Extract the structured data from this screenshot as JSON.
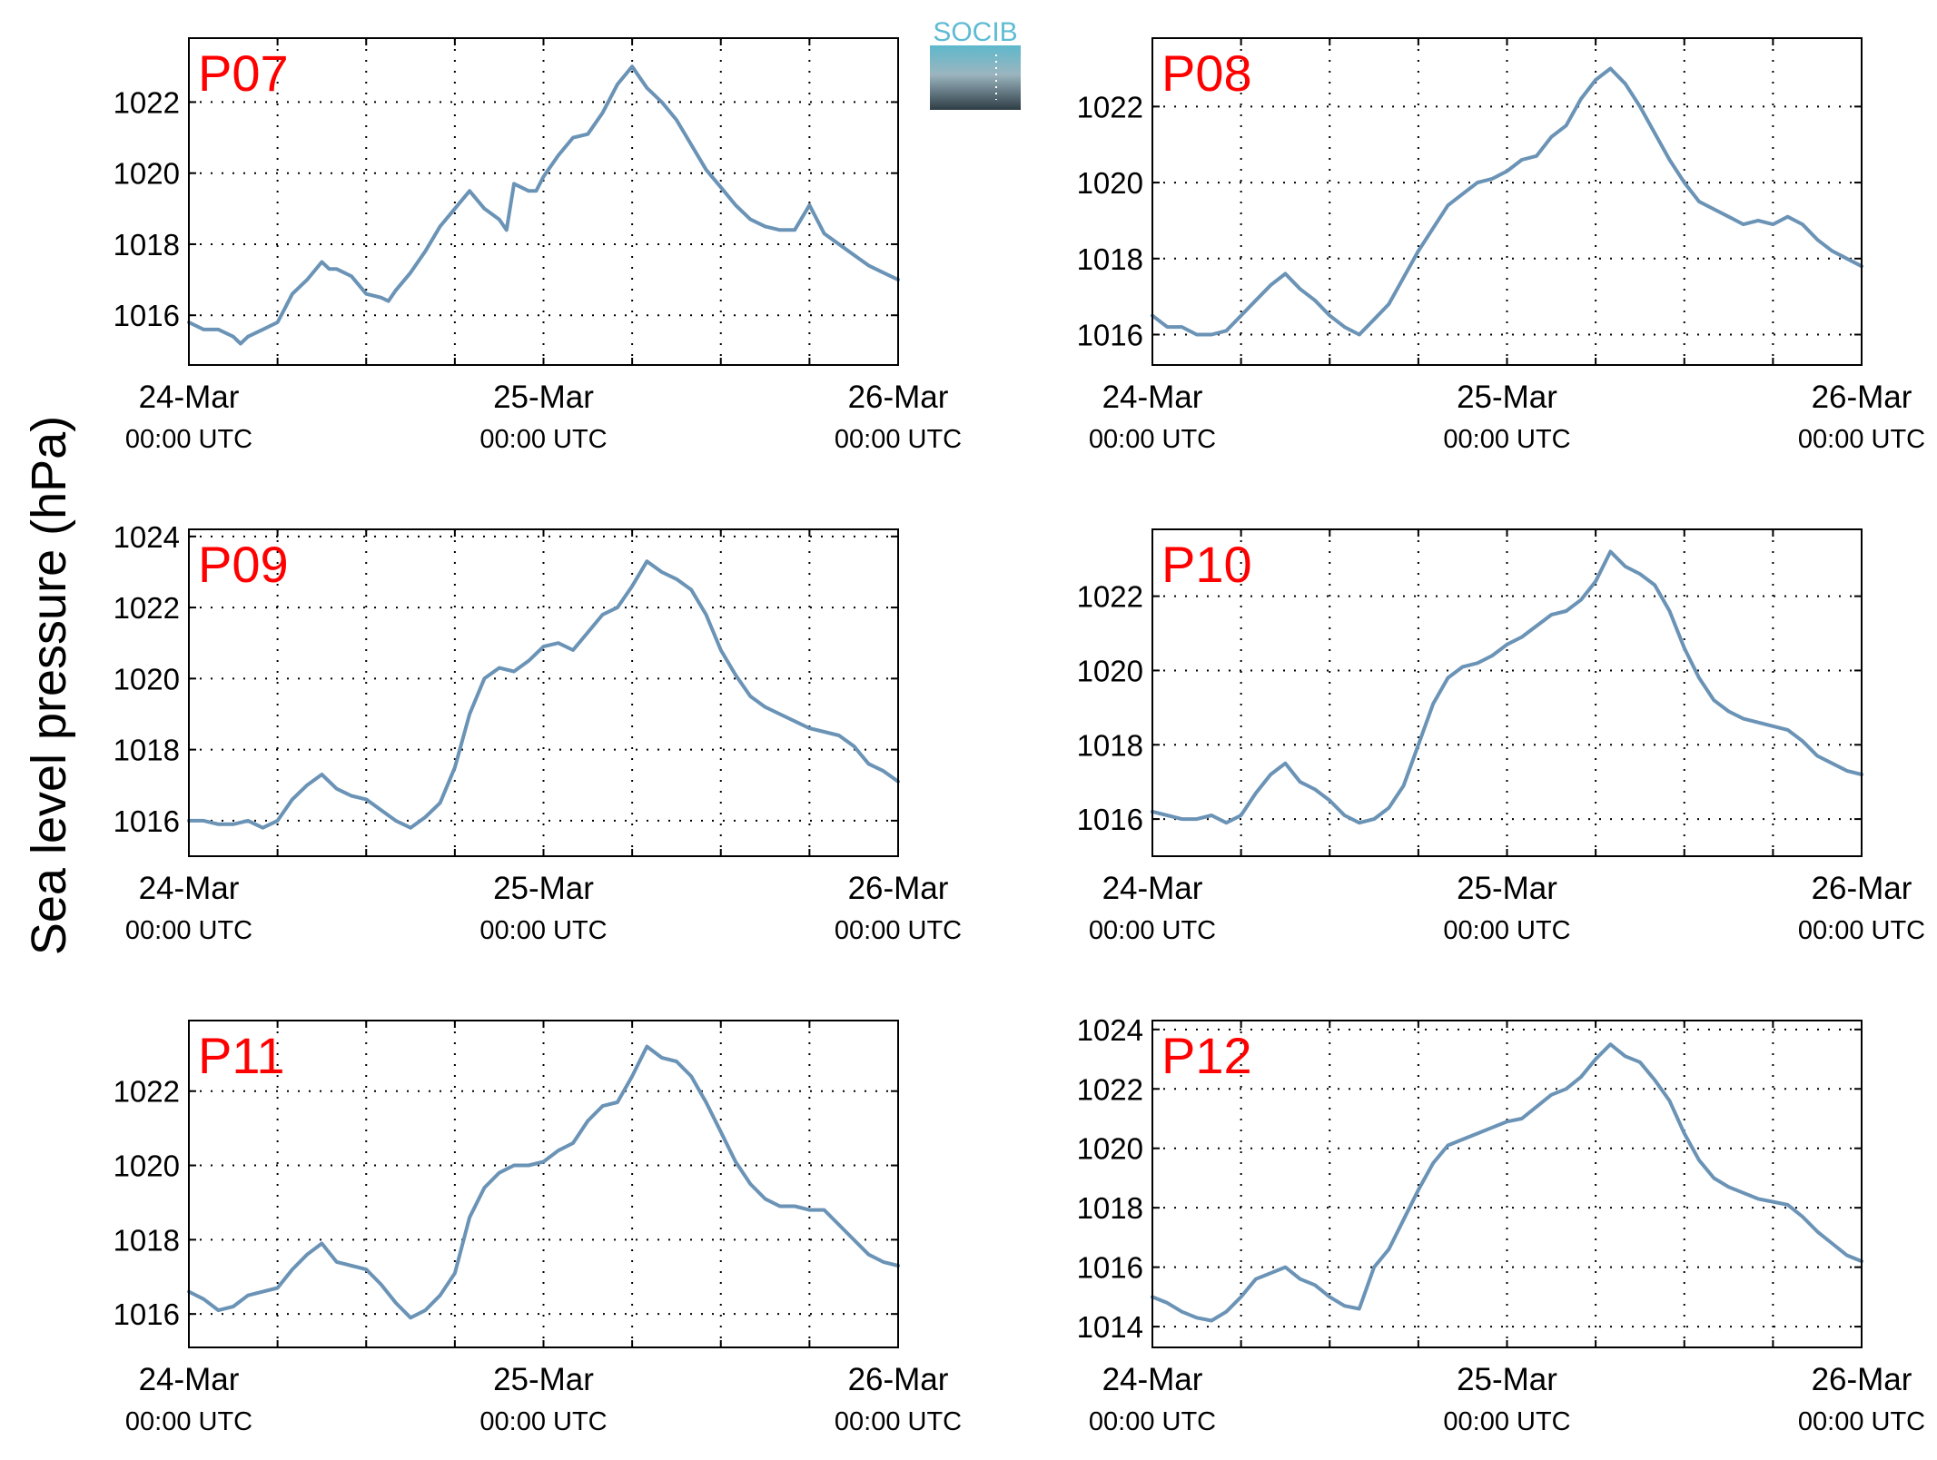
{
  "figure": {
    "ylabel": "Sea level pressure (hPa)",
    "logo_text": "SOCIB"
  },
  "style": {
    "line_color": "#6a93b6",
    "label_color": "#ff0000",
    "grid_color": "#000000",
    "logo_text_color": "#5fbcd3",
    "logo_top_color": "#5db8cc",
    "logo_bottom_color": "#2e3d46"
  },
  "x_tick_labels": [
    {
      "day": "24-Mar",
      "time": "00:00 UTC"
    },
    {
      "day": "25-Mar",
      "time": "00:00 UTC"
    },
    {
      "day": "26-Mar",
      "time": "00:00 UTC"
    }
  ],
  "chart_data": [
    {
      "type": "line",
      "title": "P07",
      "x_unit": "hours from 24-Mar 00:00 UTC",
      "xlim": [
        0,
        48
      ],
      "ylim": [
        1014.6,
        1023.8
      ],
      "yticks": [
        1016,
        1018,
        1020,
        1022
      ],
      "xticks": [
        0,
        6,
        12,
        18,
        24,
        30,
        36,
        42,
        48
      ],
      "grid": true,
      "x": [
        0,
        1,
        2,
        3,
        3.5,
        4,
        5,
        6,
        6.5,
        7,
        8,
        9,
        9.5,
        10,
        11,
        12,
        13,
        13.5,
        14,
        15,
        16,
        17,
        18,
        19,
        20,
        21,
        21.5,
        22,
        23,
        23.5,
        24,
        25,
        26,
        27,
        28,
        29,
        30,
        31,
        32,
        33,
        34,
        35,
        36,
        37,
        38,
        39,
        40,
        41,
        42,
        43,
        44,
        45,
        46,
        47,
        48
      ],
      "y": [
        1015.8,
        1015.6,
        1015.6,
        1015.4,
        1015.2,
        1015.4,
        1015.6,
        1015.8,
        1016.2,
        1016.6,
        1017.0,
        1017.5,
        1017.3,
        1017.3,
        1017.1,
        1016.6,
        1016.5,
        1016.4,
        1016.7,
        1017.2,
        1017.8,
        1018.5,
        1019.0,
        1019.5,
        1019.0,
        1018.7,
        1018.4,
        1019.7,
        1019.5,
        1019.5,
        1019.9,
        1020.5,
        1021.0,
        1021.1,
        1021.7,
        1022.5,
        1023.0,
        1022.4,
        1022.0,
        1021.5,
        1020.8,
        1020.1,
        1019.6,
        1019.1,
        1018.7,
        1018.5,
        1018.4,
        1018.4,
        1019.1,
        1018.3,
        1018.0,
        1017.7,
        1017.4,
        1017.2,
        1017.0
      ]
    },
    {
      "type": "line",
      "title": "P08",
      "x_unit": "hours from 24-Mar 00:00 UTC",
      "xlim": [
        0,
        48
      ],
      "ylim": [
        1015.2,
        1023.8
      ],
      "yticks": [
        1016,
        1018,
        1020,
        1022
      ],
      "xticks": [
        0,
        6,
        12,
        18,
        24,
        30,
        36,
        42,
        48
      ],
      "grid": true,
      "x": [
        0,
        1,
        2,
        3,
        4,
        5,
        6,
        7,
        8,
        9,
        10,
        11,
        12,
        13,
        14,
        15,
        16,
        17,
        18,
        19,
        20,
        21,
        22,
        23,
        24,
        25,
        26,
        27,
        28,
        29,
        30,
        31,
        32,
        33,
        34,
        35,
        36,
        37,
        38,
        39,
        40,
        41,
        42,
        43,
        44,
        45,
        46,
        47,
        48
      ],
      "y": [
        1016.5,
        1016.2,
        1016.2,
        1016.0,
        1016.0,
        1016.1,
        1016.5,
        1016.9,
        1017.3,
        1017.6,
        1017.2,
        1016.9,
        1016.5,
        1016.2,
        1016.0,
        1016.4,
        1016.8,
        1017.5,
        1018.2,
        1018.8,
        1019.4,
        1019.7,
        1020.0,
        1020.1,
        1020.3,
        1020.6,
        1020.7,
        1021.2,
        1021.5,
        1022.2,
        1022.7,
        1023.0,
        1022.6,
        1022.0,
        1021.3,
        1020.6,
        1020.0,
        1019.5,
        1019.3,
        1019.1,
        1018.9,
        1019.0,
        1018.9,
        1019.1,
        1018.9,
        1018.5,
        1018.2,
        1018.0,
        1017.8
      ]
    },
    {
      "type": "line",
      "title": "P09",
      "x_unit": "hours from 24-Mar 00:00 UTC",
      "xlim": [
        0,
        48
      ],
      "ylim": [
        1015.0,
        1024.2
      ],
      "yticks": [
        1016,
        1018,
        1020,
        1022,
        1024
      ],
      "xticks": [
        0,
        6,
        12,
        18,
        24,
        30,
        36,
        42,
        48
      ],
      "grid": true,
      "x": [
        0,
        1,
        2,
        3,
        4,
        5,
        6,
        7,
        8,
        9,
        10,
        11,
        12,
        13,
        14,
        15,
        16,
        17,
        18,
        19,
        20,
        21,
        22,
        23,
        24,
        25,
        26,
        27,
        28,
        29,
        30,
        31,
        32,
        33,
        34,
        35,
        36,
        37,
        38,
        39,
        40,
        41,
        42,
        43,
        44,
        45,
        46,
        47,
        48
      ],
      "y": [
        1016.0,
        1016.0,
        1015.9,
        1015.9,
        1016.0,
        1015.8,
        1016.0,
        1016.6,
        1017.0,
        1017.3,
        1016.9,
        1016.7,
        1016.6,
        1016.3,
        1016.0,
        1015.8,
        1016.1,
        1016.5,
        1017.5,
        1019.0,
        1020.0,
        1020.3,
        1020.2,
        1020.5,
        1020.9,
        1021.0,
        1020.8,
        1021.3,
        1021.8,
        1022.0,
        1022.6,
        1023.3,
        1023.0,
        1022.8,
        1022.5,
        1021.8,
        1020.8,
        1020.1,
        1019.5,
        1019.2,
        1019.0,
        1018.8,
        1018.6,
        1018.5,
        1018.4,
        1018.1,
        1017.6,
        1017.4,
        1017.1
      ]
    },
    {
      "type": "line",
      "title": "P10",
      "x_unit": "hours from 24-Mar 00:00 UTC",
      "xlim": [
        0,
        48
      ],
      "ylim": [
        1015.0,
        1023.8
      ],
      "yticks": [
        1016,
        1018,
        1020,
        1022
      ],
      "xticks": [
        0,
        6,
        12,
        18,
        24,
        30,
        36,
        42,
        48
      ],
      "grid": true,
      "x": [
        0,
        1,
        2,
        3,
        4,
        5,
        6,
        7,
        8,
        9,
        10,
        11,
        12,
        13,
        14,
        15,
        16,
        17,
        18,
        19,
        20,
        21,
        22,
        23,
        24,
        25,
        26,
        27,
        28,
        29,
        30,
        31,
        32,
        33,
        34,
        35,
        36,
        37,
        38,
        39,
        40,
        41,
        42,
        43,
        44,
        45,
        46,
        47,
        48
      ],
      "y": [
        1016.2,
        1016.1,
        1016.0,
        1016.0,
        1016.1,
        1015.9,
        1016.1,
        1016.7,
        1017.2,
        1017.5,
        1017.0,
        1016.8,
        1016.5,
        1016.1,
        1015.9,
        1016.0,
        1016.3,
        1016.9,
        1018.0,
        1019.1,
        1019.8,
        1020.1,
        1020.2,
        1020.4,
        1020.7,
        1020.9,
        1021.2,
        1021.5,
        1021.6,
        1021.9,
        1022.4,
        1023.2,
        1022.8,
        1022.6,
        1022.3,
        1021.6,
        1020.6,
        1019.8,
        1019.2,
        1018.9,
        1018.7,
        1018.6,
        1018.5,
        1018.4,
        1018.1,
        1017.7,
        1017.5,
        1017.3,
        1017.2
      ]
    },
    {
      "type": "line",
      "title": "P11",
      "x_unit": "hours from 24-Mar 00:00 UTC",
      "xlim": [
        0,
        48
      ],
      "ylim": [
        1015.1,
        1023.9
      ],
      "yticks": [
        1016,
        1018,
        1020,
        1022
      ],
      "xticks": [
        0,
        6,
        12,
        18,
        24,
        30,
        36,
        42,
        48
      ],
      "grid": true,
      "x": [
        0,
        1,
        2,
        3,
        4,
        5,
        6,
        7,
        8,
        9,
        10,
        11,
        12,
        13,
        14,
        15,
        16,
        17,
        18,
        19,
        20,
        21,
        22,
        23,
        24,
        25,
        26,
        27,
        28,
        29,
        30,
        31,
        32,
        33,
        34,
        35,
        36,
        37,
        38,
        39,
        40,
        41,
        42,
        43,
        44,
        45,
        46,
        47,
        48
      ],
      "y": [
        1016.6,
        1016.4,
        1016.1,
        1016.2,
        1016.5,
        1016.6,
        1016.7,
        1017.2,
        1017.6,
        1017.9,
        1017.4,
        1017.3,
        1017.2,
        1016.8,
        1016.3,
        1015.9,
        1016.1,
        1016.5,
        1017.1,
        1018.6,
        1019.4,
        1019.8,
        1020.0,
        1020.0,
        1020.1,
        1020.4,
        1020.6,
        1021.2,
        1021.6,
        1021.7,
        1022.4,
        1023.2,
        1022.9,
        1022.8,
        1022.4,
        1021.7,
        1020.9,
        1020.1,
        1019.5,
        1019.1,
        1018.9,
        1018.9,
        1018.8,
        1018.8,
        1018.4,
        1018.0,
        1017.6,
        1017.4,
        1017.3
      ]
    },
    {
      "type": "line",
      "title": "P12",
      "x_unit": "hours from 24-Mar 00:00 UTC",
      "xlim": [
        0,
        48
      ],
      "ylim": [
        1013.3,
        1024.3
      ],
      "yticks": [
        1014,
        1016,
        1018,
        1020,
        1022,
        1024
      ],
      "xticks": [
        0,
        6,
        12,
        18,
        24,
        30,
        36,
        42,
        48
      ],
      "grid": true,
      "x": [
        0,
        1,
        2,
        3,
        4,
        5,
        6,
        7,
        8,
        9,
        10,
        11,
        12,
        13,
        14,
        15,
        16,
        17,
        18,
        19,
        20,
        21,
        22,
        23,
        24,
        25,
        26,
        27,
        28,
        29,
        30,
        31,
        32,
        33,
        34,
        35,
        36,
        37,
        38,
        39,
        40,
        41,
        42,
        43,
        44,
        45,
        46,
        47,
        48
      ],
      "y": [
        1015.0,
        1014.8,
        1014.5,
        1014.3,
        1014.2,
        1014.5,
        1015.0,
        1015.6,
        1015.8,
        1016.0,
        1015.6,
        1015.4,
        1015.0,
        1014.7,
        1014.6,
        1016.0,
        1016.6,
        1017.6,
        1018.6,
        1019.5,
        1020.1,
        1020.3,
        1020.5,
        1020.7,
        1020.9,
        1021.0,
        1021.4,
        1021.8,
        1022.0,
        1022.4,
        1023.0,
        1023.5,
        1023.1,
        1022.9,
        1022.3,
        1021.6,
        1020.5,
        1019.6,
        1019.0,
        1018.7,
        1018.5,
        1018.3,
        1018.2,
        1018.1,
        1017.7,
        1017.2,
        1016.8,
        1016.4,
        1016.2
      ]
    }
  ]
}
